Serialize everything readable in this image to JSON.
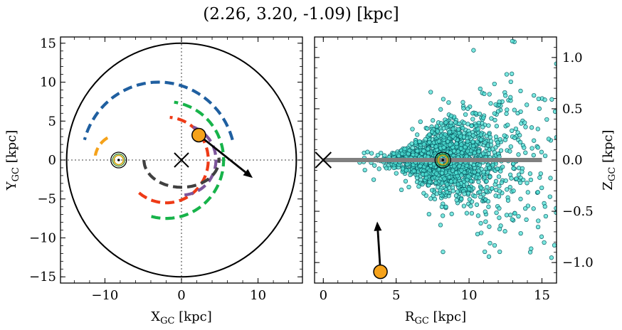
{
  "title": "(2.26, 3.20, -1.09) [kpc]",
  "colors": {
    "orbit_blue": "#1f5fa0",
    "orbit_green": "#17b34a",
    "orbit_red": "#ee3a16",
    "orbit_purple": "#7d559b",
    "orbit_gray": "#404040",
    "orbit_orange": "#f5a21a",
    "star_fill": "#4fe0d4",
    "star_edge": "#0b5f66",
    "sun_ring": "#2f7d20",
    "disk_line": "#808080",
    "marker_fill": "#f5a21a"
  },
  "chart_data": [
    {
      "type": "scatter",
      "name": "xy-plane",
      "xlabel": "X",
      "xlabel_sub": "GC",
      "xlabel_unit": " [kpc]",
      "ylabel": "Y",
      "ylabel_sub": "GC",
      "ylabel_unit": " [kpc]",
      "xlim": [
        -15.8,
        15.8
      ],
      "ylim": [
        -15.8,
        15.8
      ],
      "xticks": [
        -10,
        0,
        10
      ],
      "xtick_labels": [
        "−10",
        "0",
        "10"
      ],
      "yticks": [
        -15,
        -10,
        -5,
        0,
        5,
        10,
        15
      ],
      "ytick_labels": [
        "−15",
        "−10",
        "−5",
        "0",
        "5",
        "10",
        "15"
      ],
      "boundary_circle_radius": 15,
      "galactic_center": [
        0,
        0
      ],
      "sun": [
        -8.2,
        0
      ],
      "object": [
        2.26,
        3.2
      ],
      "velocity_arrow_tip": [
        9.3,
        -2.3
      ],
      "orbits": [
        {
          "color_key": "orbit_blue",
          "center": [
            -3,
            0
          ],
          "radius": 10,
          "theta_range_deg": [
            15,
            165
          ]
        },
        {
          "color_key": "orbit_green",
          "center": [
            -2,
            0
          ],
          "radius": 7.5,
          "theta_range_deg": [
            -105,
            82
          ],
          "reverse": true
        },
        {
          "color_key": "orbit_red",
          "center": [
            -2,
            0
          ],
          "radius": 5.5,
          "theta_range_deg": [
            -130,
            85
          ],
          "reverse": true
        },
        {
          "color_key": "orbit_purple",
          "center": [
            0,
            0
          ],
          "radius": 4.5,
          "theta_range_deg": [
            -85,
            75
          ],
          "reverse": true
        },
        {
          "color_key": "orbit_gray",
          "center": [
            0,
            0
          ],
          "radius": 3.5,
          "theta_range_deg": [
            -180,
            5
          ],
          "reverse": true,
          "x_scale": 1.4
        },
        {
          "color_key": "orbit_orange",
          "center": [
            -8,
            0
          ],
          "radius": 3.3,
          "theta_range_deg": [
            120,
            170
          ]
        }
      ]
    },
    {
      "type": "scatter",
      "name": "rz-plane",
      "xlabel": "R",
      "xlabel_sub": "GC",
      "xlabel_unit": " [kpc]",
      "ylabel": "Z",
      "ylabel_sub": "GC",
      "ylabel_unit": " [kpc]",
      "xlim": [
        -0.6,
        16
      ],
      "ylim": [
        -1.2,
        1.2
      ],
      "xticks": [
        0,
        5,
        10,
        15
      ],
      "xtick_labels": [
        "0",
        "5",
        "10",
        "15"
      ],
      "yticks": [
        -1.0,
        -0.5,
        0.0,
        0.5,
        1.0
      ],
      "ytick_labels": [
        "−1.0",
        "−0.5",
        "0.0",
        "0.5",
        "1.0"
      ],
      "disk_line": {
        "x": [
          0,
          15
        ],
        "z": 0
      },
      "galactic_center": [
        0,
        0
      ],
      "sun": [
        8.2,
        0
      ],
      "object": [
        3.92,
        -1.09
      ],
      "velocity_arrow_tip": [
        3.7,
        -0.6
      ],
      "stars": {
        "core_count": 1500,
        "core_r_mean": 8.5,
        "core_r_sd": 2.0,
        "core_z_sd_base": 0.04,
        "core_z_sd_growth": 0.04,
        "outlier_count": 170,
        "outlier_r_range": [
          1.5,
          16
        ],
        "outlier_z_sd": 0.5,
        "seed": 7
      }
    }
  ]
}
